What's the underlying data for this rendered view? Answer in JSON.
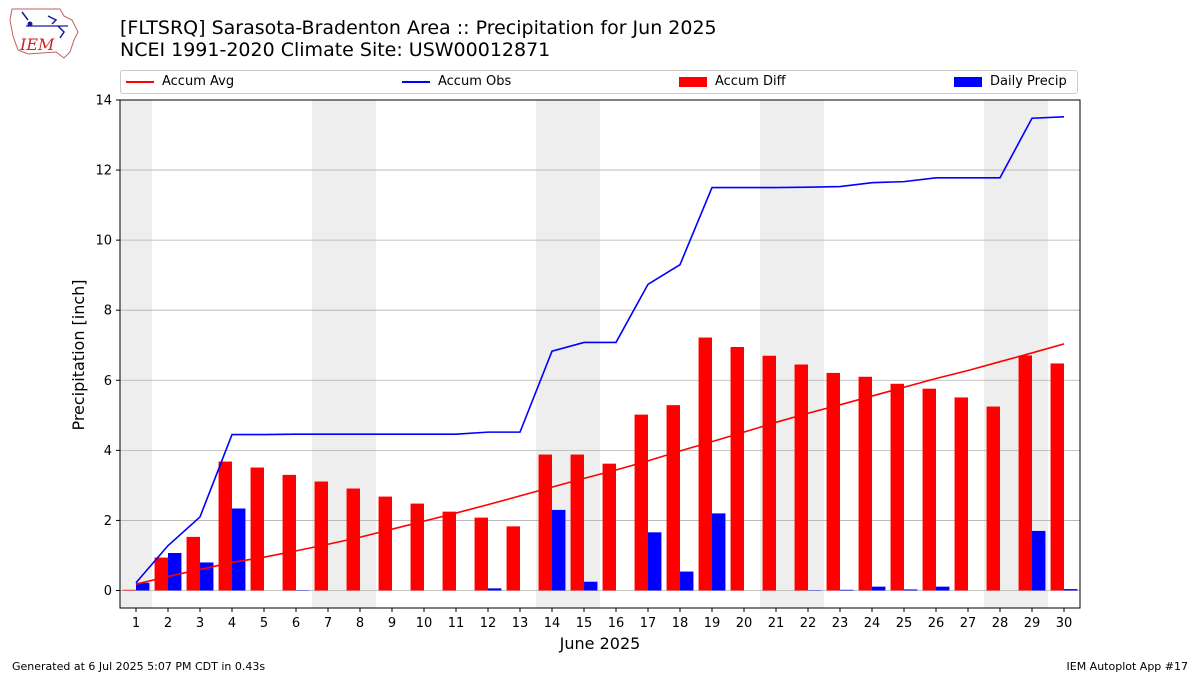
{
  "header": {
    "logo_text": "IEM",
    "title_line1": "[FLTSRQ] Sarasota-Bradenton Area :: Precipitation for Jun 2025",
    "title_line2": "NCEI 1991-2020 Climate Site: USW00012871"
  },
  "legend": {
    "accum_avg": "Accum Avg",
    "accum_obs": "Accum Obs",
    "accum_diff": "Accum Diff",
    "daily_precip": "Daily Precip"
  },
  "footer": {
    "left": "Generated at 6 Jul 2025 5:07 PM CDT in 0.43s",
    "right": "IEM Autoplot App #17"
  },
  "colors": {
    "avg": "#ff0000",
    "obs": "#0000ff",
    "diff": "#ff0000",
    "daily": "#0000ff",
    "weekend_shade": "#eeeeee",
    "grid": "#b0b0b0"
  },
  "chart_data": {
    "type": "bar",
    "xlabel": "June 2025",
    "ylabel": "Precipitation [inch]",
    "ylim": [
      -0.5,
      14
    ],
    "yticks": [
      0,
      2,
      4,
      6,
      8,
      10,
      12,
      14
    ],
    "grid": "horizontal",
    "legend_placement": "top",
    "days": [
      1,
      2,
      3,
      4,
      5,
      6,
      7,
      8,
      9,
      10,
      11,
      12,
      13,
      14,
      15,
      16,
      17,
      18,
      19,
      20,
      21,
      22,
      23,
      24,
      25,
      26,
      27,
      28,
      29,
      30
    ],
    "weekend_days": [
      1,
      7,
      8,
      14,
      15,
      21,
      22,
      28,
      29
    ],
    "series": [
      {
        "name": "Accum Avg",
        "kind": "line",
        "values": [
          0.18,
          0.4,
          0.6,
          0.8,
          0.95,
          1.13,
          1.32,
          1.52,
          1.75,
          1.98,
          2.21,
          2.45,
          2.7,
          2.95,
          3.2,
          3.44,
          3.7,
          3.98,
          4.25,
          4.52,
          4.8,
          5.06,
          5.3,
          5.55,
          5.8,
          6.05,
          6.28,
          6.53,
          6.78,
          7.04
        ]
      },
      {
        "name": "Accum Obs",
        "kind": "line",
        "values": [
          0.22,
          1.28,
          2.1,
          4.45,
          4.45,
          4.46,
          4.46,
          4.46,
          4.46,
          4.46,
          4.46,
          4.52,
          4.52,
          6.83,
          7.08,
          7.08,
          8.74,
          9.3,
          11.5,
          11.5,
          11.5,
          11.51,
          11.53,
          11.64,
          11.67,
          11.78,
          11.78,
          11.78,
          13.48,
          13.52
        ]
      },
      {
        "name": "Accum Diff",
        "kind": "bar",
        "values": [
          0.02,
          0.94,
          1.53,
          3.68,
          3.51,
          3.3,
          3.11,
          2.91,
          2.68,
          2.48,
          2.25,
          2.08,
          1.83,
          3.88,
          3.88,
          3.62,
          5.02,
          5.29,
          7.22,
          6.95,
          6.7,
          6.45,
          6.21,
          6.1,
          5.9,
          5.76,
          5.51,
          5.25,
          6.71,
          6.48
        ]
      },
      {
        "name": "Daily Precip",
        "kind": "bar",
        "values": [
          0.22,
          1.07,
          0.8,
          2.34,
          0.0,
          0.01,
          0.0,
          0.0,
          0.0,
          0.0,
          0.0,
          0.06,
          0.0,
          2.3,
          0.25,
          0.0,
          1.66,
          0.54,
          2.2,
          0.0,
          0.0,
          0.01,
          0.02,
          0.11,
          0.03,
          0.11,
          0.0,
          0.0,
          1.7,
          0.04
        ]
      }
    ]
  }
}
